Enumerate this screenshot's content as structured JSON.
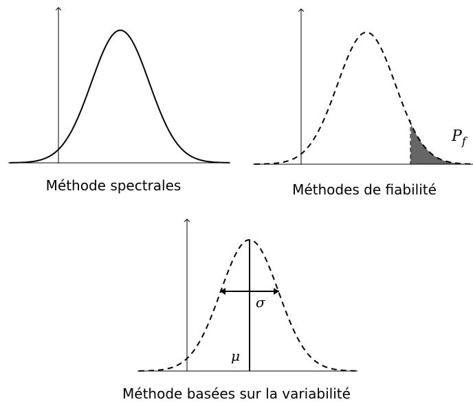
{
  "panels": [
    {
      "caption": "Méthode spectrales"
    },
    {
      "caption": "Méthodes de fiabilité",
      "annotation": "P_f"
    },
    {
      "caption": "Méthode basées sur la variabilité",
      "sigma": "σ",
      "mu": "μ"
    }
  ]
}
